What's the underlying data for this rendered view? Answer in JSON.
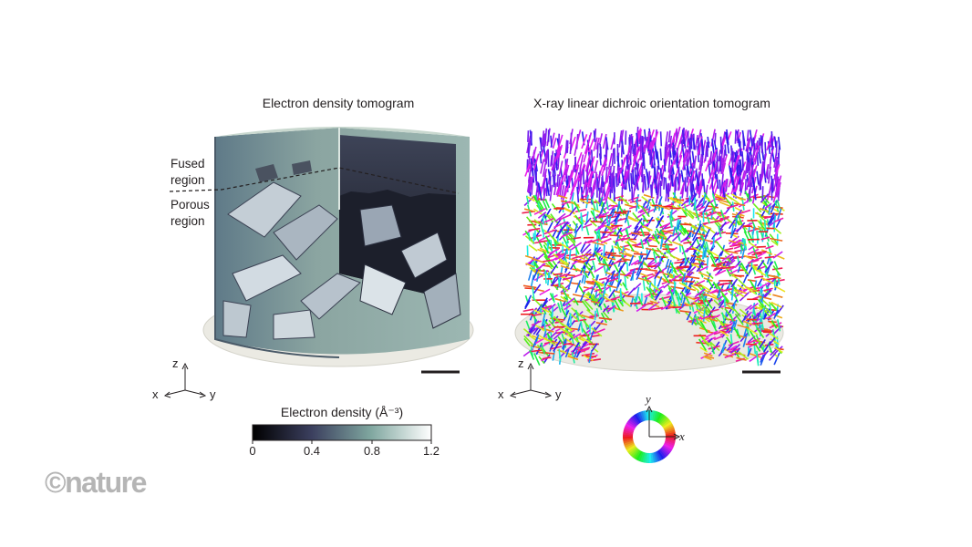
{
  "panels": {
    "left_title": "Electron density tomogram",
    "right_title": "X-ray linear dichroic orientation tomogram"
  },
  "regions": {
    "fused_line1": "Fused",
    "fused_line2": "region",
    "porous_line1": "Porous",
    "porous_line2": "region"
  },
  "axes": {
    "z": "z",
    "x": "x",
    "y": "y"
  },
  "colorbar": {
    "title": "Electron density (Å⁻³)",
    "ticks": [
      "0",
      "0.4",
      "0.8",
      "1.2"
    ],
    "colors": [
      "#000000",
      "#3b3f5e",
      "#7fa69f",
      "#ffffff"
    ]
  },
  "orientation_wheel": {
    "x_label": "x",
    "y_label": "y"
  },
  "watermark": "©nature"
}
